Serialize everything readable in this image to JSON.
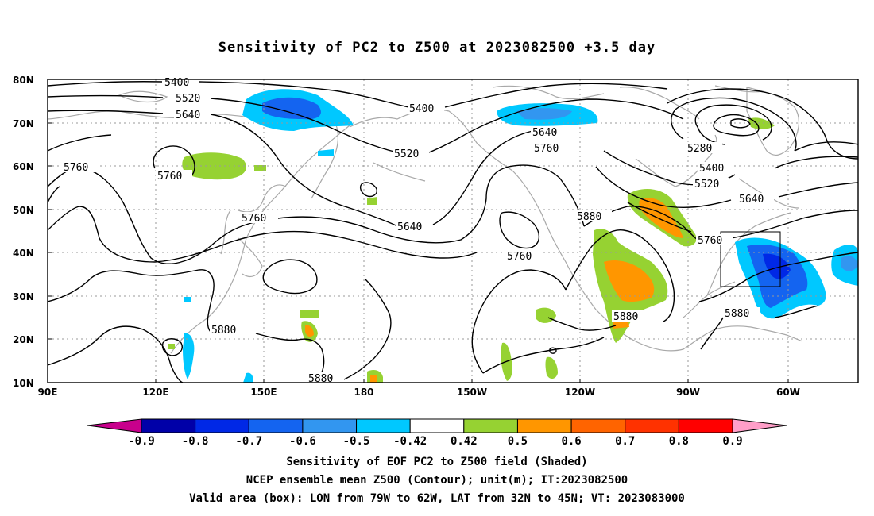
{
  "title": "Sensitivity of PC2 to Z500 at 2023082500 +3.5 day",
  "lat_ticks": [
    "80N",
    "70N",
    "60N",
    "50N",
    "40N",
    "30N",
    "20N",
    "10N"
  ],
  "lon_ticks": [
    "90E",
    "120E",
    "150E",
    "180",
    "150W",
    "120W",
    "90W",
    "60W"
  ],
  "contour_labels": [
    {
      "text": "5400",
      "id": "a"
    },
    {
      "text": "5520",
      "id": "b"
    },
    {
      "text": "5640",
      "id": "c"
    },
    {
      "text": "5760",
      "id": "d"
    },
    {
      "text": "5760",
      "id": "e"
    },
    {
      "text": "5760",
      "id": "f"
    },
    {
      "text": "5400",
      "id": "g"
    },
    {
      "text": "5520",
      "id": "h"
    },
    {
      "text": "5640",
      "id": "i"
    },
    {
      "text": "5640",
      "id": "j"
    },
    {
      "text": "5760",
      "id": "k"
    },
    {
      "text": "5760",
      "id": "l"
    },
    {
      "text": "5880",
      "id": "m"
    },
    {
      "text": "5280",
      "id": "n"
    },
    {
      "text": "5400",
      "id": "o"
    },
    {
      "text": "5520",
      "id": "p"
    },
    {
      "text": "5640",
      "id": "q"
    },
    {
      "text": "5760",
      "id": "r"
    },
    {
      "text": "5880",
      "id": "s"
    },
    {
      "text": "5880",
      "id": "t"
    },
    {
      "text": "5880",
      "id": "u"
    },
    {
      "text": "5880",
      "id": "v"
    }
  ],
  "colorbar": {
    "labels": [
      "-0.9",
      "-0.8",
      "-0.7",
      "-0.6",
      "-0.5",
      "-0.42",
      "0.42",
      "0.5",
      "0.6",
      "0.7",
      "0.8",
      "0.9"
    ],
    "colors": [
      "#0000a8",
      "#0028e6",
      "#1464f0",
      "#3296f0",
      "#00c8ff",
      "#ffffff",
      "#96d232",
      "#ff9600",
      "#ff6400",
      "#ff3200",
      "#ff0000"
    ],
    "low_end_color": "#c8008c",
    "high_end_color": "#ff9ec8"
  },
  "valid_box": {
    "lon": [
      -79,
      -62
    ],
    "lat": [
      32,
      45
    ]
  },
  "footer": {
    "line1": "Sensitivity of EOF PC2 to Z500 field (Shaded)",
    "line2": "NCEP ensemble mean Z500 (Contour); unit(m); IT:2023082500",
    "line3": "Valid area (box): LON from 79W to 62W, LAT from 32N to 45N; VT: 2023083000"
  }
}
